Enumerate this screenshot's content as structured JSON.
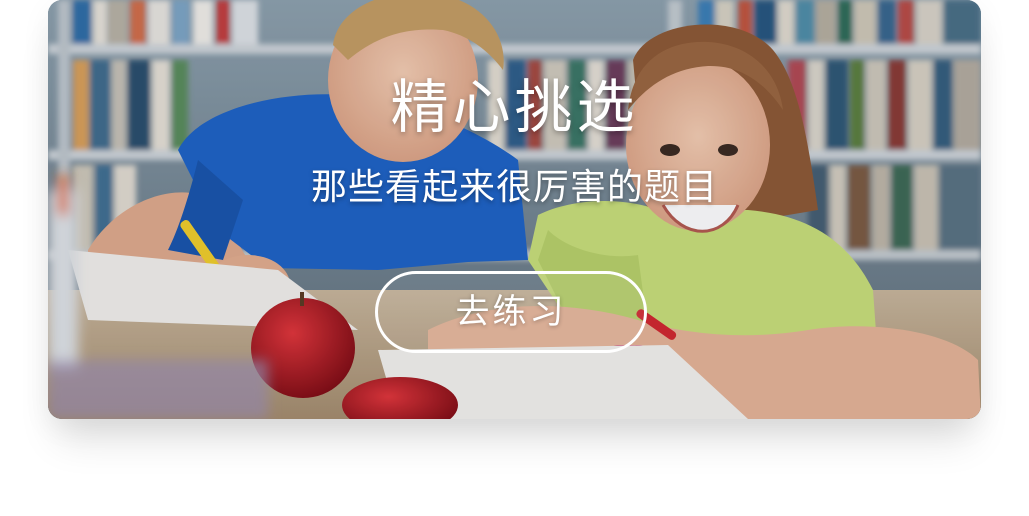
{
  "banner": {
    "title": "精心挑选",
    "subtitle": "那些看起来很厉害的题目",
    "cta_label": "去练习",
    "photo_subject": "children-studying-in-library",
    "colors": {
      "text": "#ffffff",
      "button_border": "#ffffff",
      "shirt_blue": "#1e63c6",
      "shirt_green": "#c9e07a",
      "apple_red": "#b3141c"
    }
  }
}
